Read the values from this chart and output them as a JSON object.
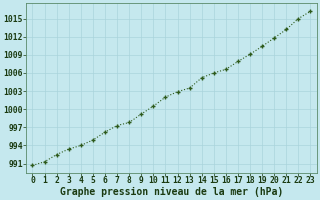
{
  "x": [
    0,
    1,
    2,
    3,
    4,
    5,
    6,
    7,
    8,
    9,
    10,
    11,
    12,
    13,
    14,
    15,
    16,
    17,
    18,
    19,
    20,
    21,
    22,
    23
  ],
  "y": [
    990.7,
    991.3,
    992.5,
    993.4,
    994.0,
    994.9,
    996.2,
    997.3,
    997.8,
    999.2,
    1000.5,
    1002.0,
    1002.9,
    1003.5,
    1005.2,
    1006.0,
    1006.6,
    1007.9,
    1009.1,
    1010.4,
    1011.8,
    1013.2,
    1015.0,
    1016.2
  ],
  "line_color": "#2d5a1b",
  "marker_color": "#2d5a1b",
  "bg_color": "#c5e8ee",
  "grid_color": "#aad4dc",
  "xlabel": "Graphe pression niveau de la mer (hPa)",
  "yticks": [
    991,
    994,
    997,
    1000,
    1003,
    1006,
    1009,
    1012,
    1015
  ],
  "xticks": [
    0,
    1,
    2,
    3,
    4,
    5,
    6,
    7,
    8,
    9,
    10,
    11,
    12,
    13,
    14,
    15,
    16,
    17,
    18,
    19,
    20,
    21,
    22,
    23
  ],
  "ylim": [
    989.5,
    1017.5
  ],
  "xlim": [
    -0.5,
    23.5
  ],
  "tick_color": "#1a3a10",
  "tick_fontsize": 5.8,
  "xlabel_fontsize": 7.0,
  "linewidth": 0.8,
  "markersize": 2.5,
  "figsize": [
    3.2,
    2.0
  ],
  "dpi": 100
}
